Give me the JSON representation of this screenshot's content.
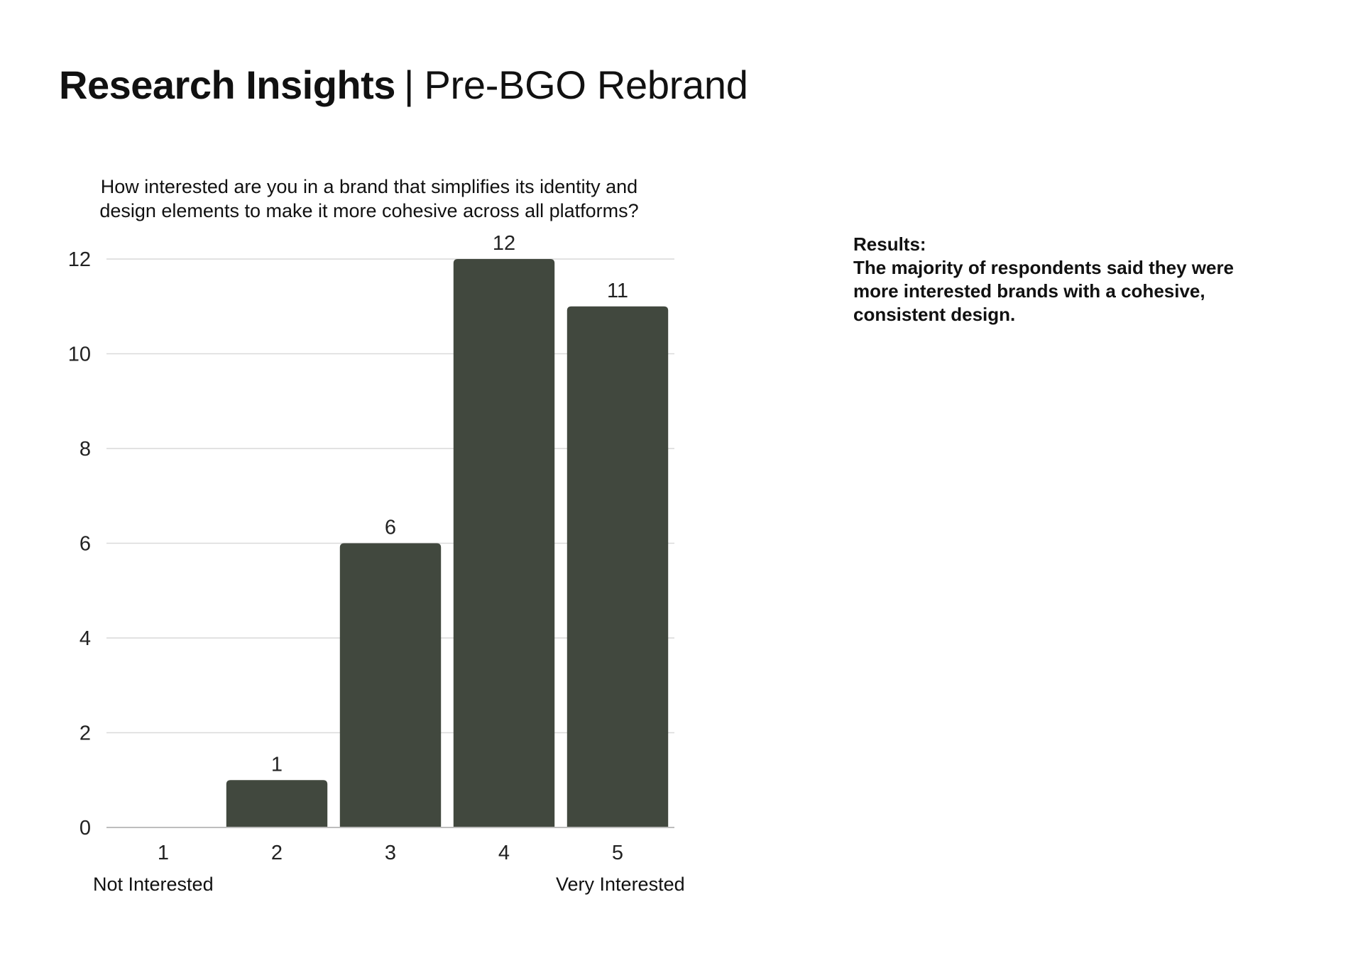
{
  "page": {
    "title_bold": "Research Insights",
    "title_separator": "|",
    "title_light": "Pre-BGO Rebrand"
  },
  "results": {
    "heading": "Results:",
    "lines": [
      "The majority of respondents said they were",
      "more interested brands with a cohesive,",
      "consistent design."
    ]
  },
  "colors": {
    "bar": "#41483E",
    "grid": "#d9d9d9",
    "axis": "#bdbdbd"
  },
  "chart_data": {
    "type": "bar",
    "title": "How interested are you in a brand that simplifies its identity and design elements to make it more cohesive across all platforms?",
    "title_lines": [
      "How interested are you in a brand that simplifies its identity and",
      "design elements to make it more cohesive across all platforms?"
    ],
    "categories": [
      "1",
      "2",
      "3",
      "4",
      "5"
    ],
    "values": [
      0,
      1,
      6,
      12,
      11
    ],
    "ylim": [
      0,
      12
    ],
    "yticks": [
      0,
      2,
      4,
      6,
      8,
      10,
      12
    ],
    "grid": true,
    "legend": "none",
    "data_labels": true,
    "scale_labels": {
      "low": "Not Interested",
      "high": "Very Interested"
    }
  }
}
